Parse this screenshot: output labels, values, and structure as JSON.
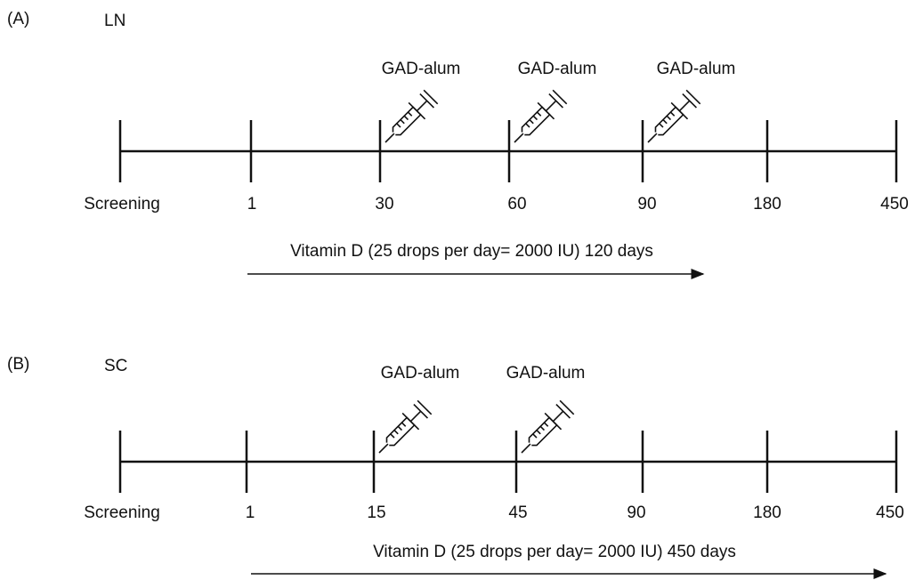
{
  "panels": [
    {
      "label": "(A)",
      "name": "LN",
      "injections": [
        "GAD-alum",
        "GAD-alum",
        "GAD-alum"
      ],
      "timepoints": [
        "Screening",
        "1",
        "30",
        "60",
        "90",
        "180",
        "450"
      ],
      "supplement": "Vitamin D (25 drops per day= 2000 IU)  120 days"
    },
    {
      "label": "(B)",
      "name": "SC",
      "injections": [
        "GAD-alum",
        "GAD-alum"
      ],
      "timepoints": [
        "Screening",
        "1",
        "15",
        "45",
        "90",
        "180",
        "450"
      ],
      "supplement": "Vitamin D (25 drops per day= 2000 IU)  450 days"
    }
  ]
}
